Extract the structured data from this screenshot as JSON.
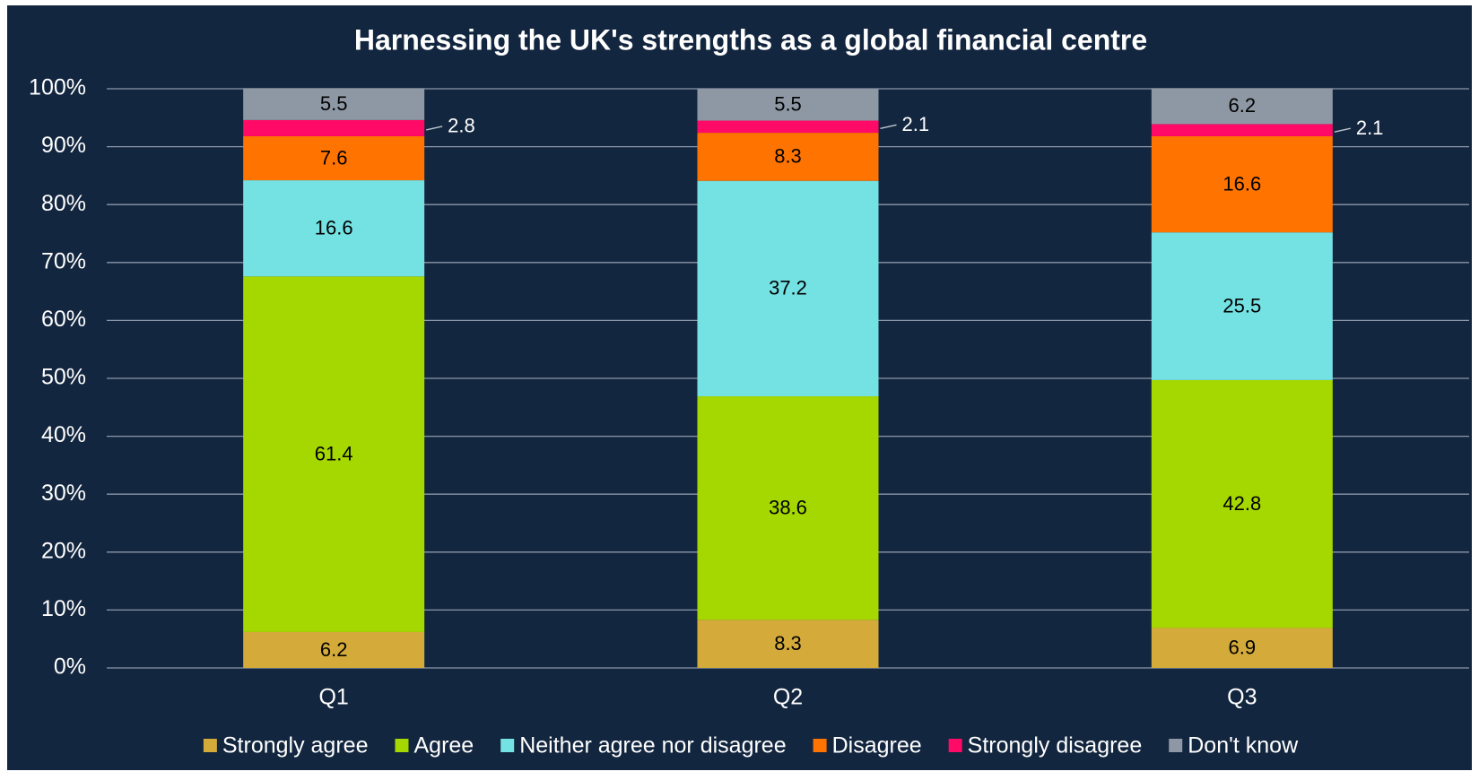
{
  "chart_data": {
    "type": "stacked_bar",
    "title": "Harnessing the UK's strengths as a global financial centre",
    "categories": [
      "Q1",
      "Q2",
      "Q3"
    ],
    "series": [
      {
        "name": "Strongly agree",
        "color": "#d4ab3b",
        "values": [
          6.2,
          8.3,
          6.9
        ]
      },
      {
        "name": "Agree",
        "color": "#a5d800",
        "values": [
          61.4,
          38.6,
          42.8
        ]
      },
      {
        "name": "Neither agree nor disagree",
        "color": "#74e1e3",
        "values": [
          16.6,
          37.2,
          25.5
        ]
      },
      {
        "name": "Disagree",
        "color": "#ff7300",
        "values": [
          7.6,
          8.3,
          16.6
        ]
      },
      {
        "name": "Strongly disagree",
        "color": "#ff0a66",
        "values": [
          2.8,
          2.1,
          2.1
        ]
      },
      {
        "name": "Don't know",
        "color": "#8e98a5",
        "values": [
          5.5,
          5.5,
          6.2
        ]
      }
    ],
    "ylim": [
      0,
      100
    ],
    "yticks": [
      {
        "value": 0,
        "label": "0%"
      },
      {
        "value": 10,
        "label": "10%"
      },
      {
        "value": 20,
        "label": "20%"
      },
      {
        "value": 30,
        "label": "30%"
      },
      {
        "value": 40,
        "label": "40%"
      },
      {
        "value": 50,
        "label": "50%"
      },
      {
        "value": 60,
        "label": "60%"
      },
      {
        "value": 70,
        "label": "70%"
      },
      {
        "value": 80,
        "label": "80%"
      },
      {
        "value": 90,
        "label": "90%"
      },
      {
        "value": 100,
        "label": "100%"
      }
    ],
    "grid": true,
    "legend": "bottom"
  }
}
